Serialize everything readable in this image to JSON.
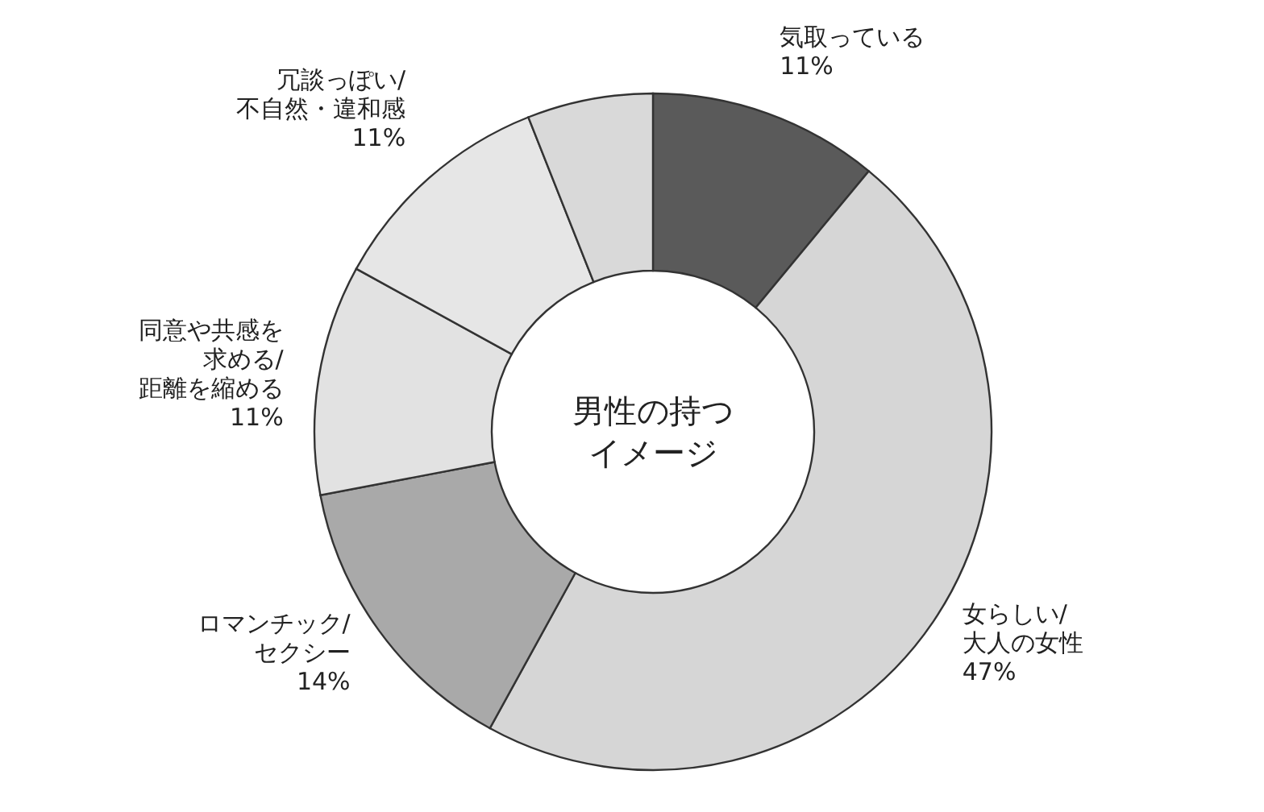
{
  "chart_data": {
    "type": "donut",
    "title": "男性の持つイメージ",
    "categories": [
      "気取っている",
      "女らしい/大人の女性",
      "ロマンチック/セクシー",
      "同意や共感を求める/距離を縮める",
      "冗談っぽい/不自然・違和感",
      null
    ],
    "values": [
      11,
      47,
      14,
      11,
      11,
      6
    ],
    "value_labels": [
      "11%",
      "47%",
      "14%",
      "11%",
      "11%",
      null
    ],
    "colors": [
      "#5a5a5a",
      "#d6d6d6",
      "#a9a9a9",
      "#e2e2e2",
      "#e6e6e6",
      "#d9d9d9"
    ]
  }
}
